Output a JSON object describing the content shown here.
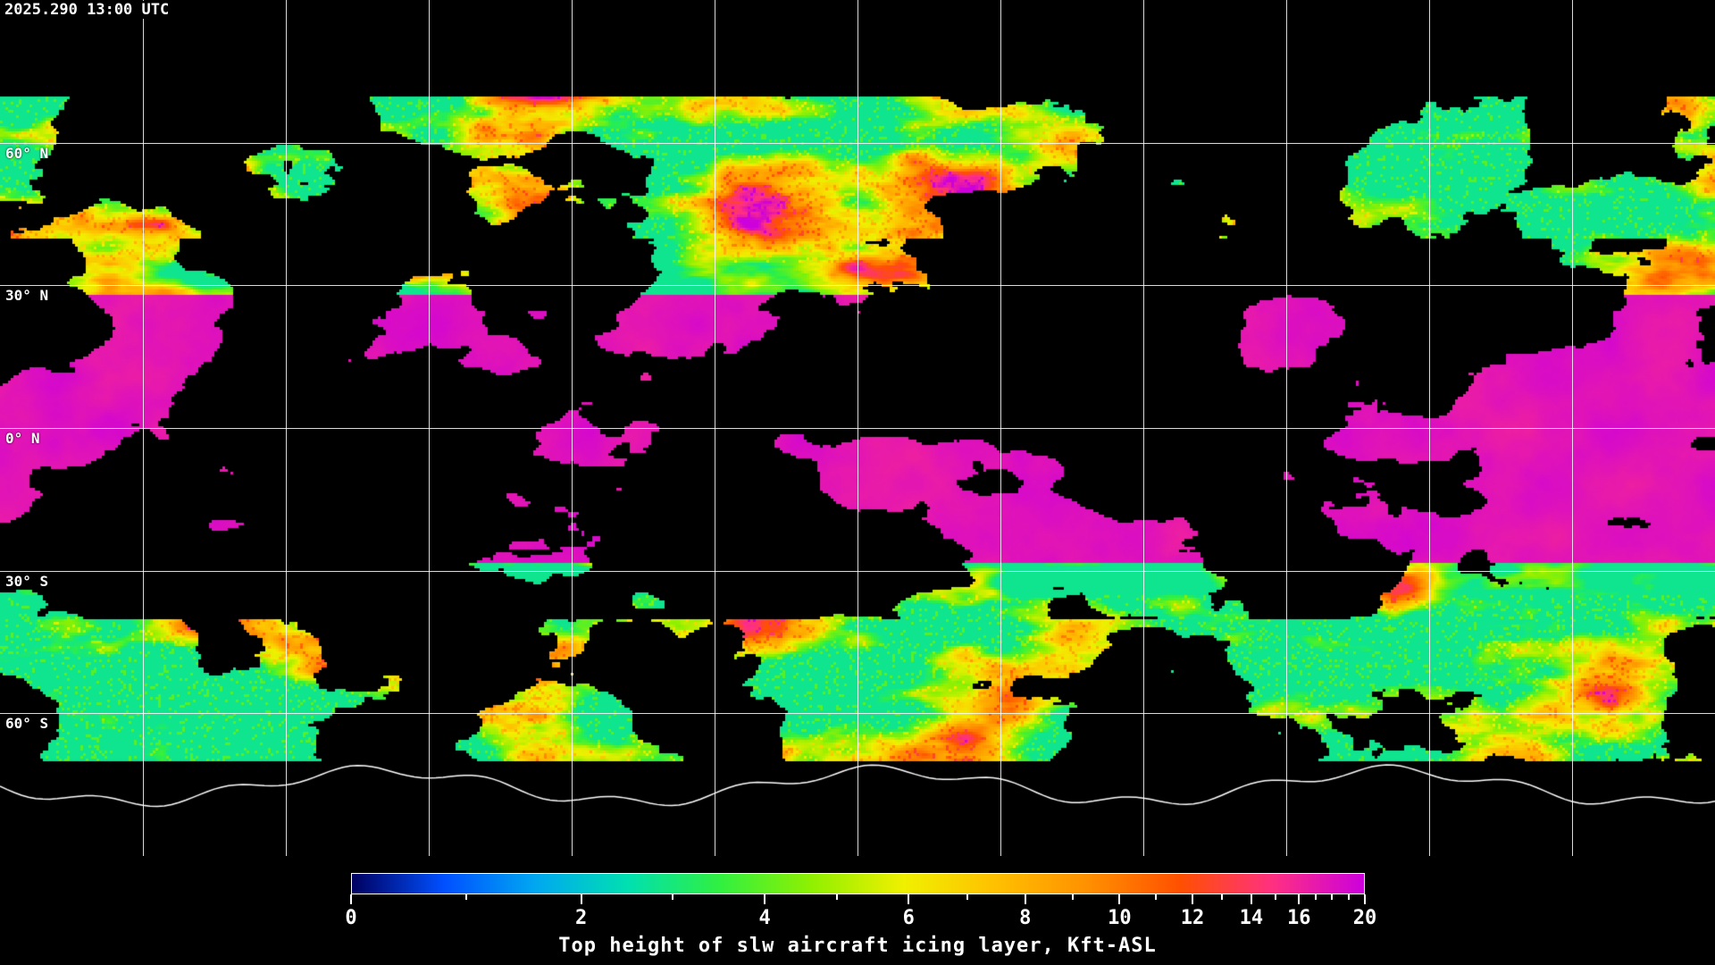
{
  "timestamp": "2025.290 13:00 UTC",
  "map": {
    "projection": "equirectangular",
    "lon_grid_step_deg": 30,
    "lat_grid_step_deg": 30,
    "lat_labels": [
      "60° N",
      "30° N",
      "0° N",
      "30° S",
      "60° S"
    ],
    "coastline_color": "#ffffff",
    "background_color": "#000000"
  },
  "colorbar": {
    "title": "Top height of slw aircraft icing layer, Kft-ASL",
    "range": [
      0,
      20
    ],
    "tick_labels": [
      "0",
      "2",
      "4",
      "6",
      "8",
      "10",
      "12",
      "14",
      "16",
      "20"
    ],
    "colors": [
      "#000060",
      "#0050ff",
      "#00a8f0",
      "#00e0b0",
      "#30f040",
      "#90f000",
      "#f0f000",
      "#ffc000",
      "#ff9000",
      "#ff5000",
      "#ff3080",
      "#cc00dd"
    ]
  }
}
